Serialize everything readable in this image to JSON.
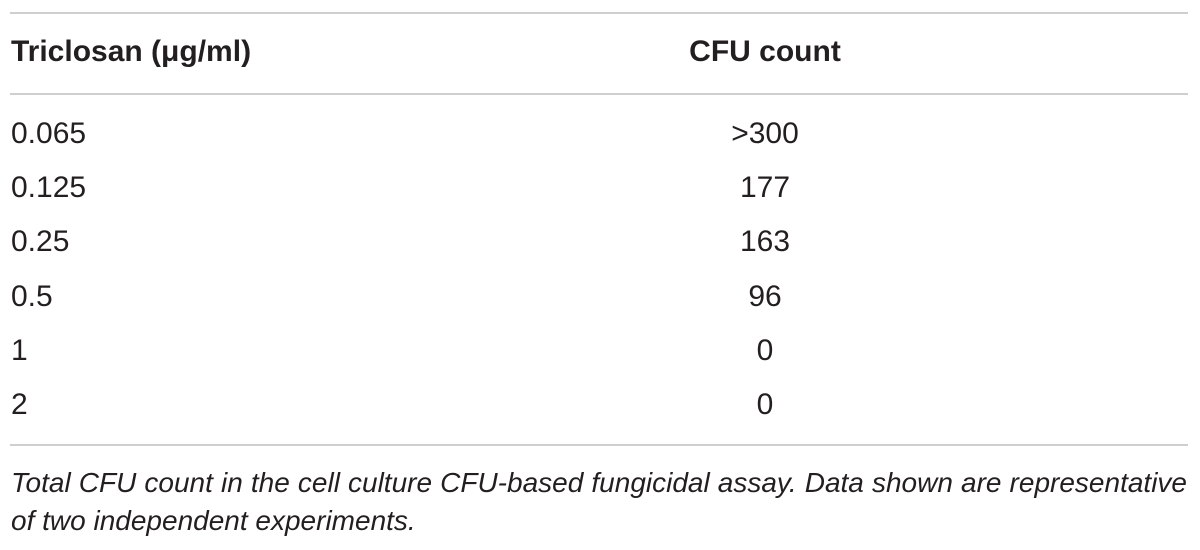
{
  "table": {
    "header": [
      "Triclosan (μg/ml)",
      "CFU count"
    ],
    "rows": [
      [
        "0.065",
        ">300"
      ],
      [
        "0.125",
        "177"
      ],
      [
        "0.25",
        "163"
      ],
      [
        "0.5",
        "96"
      ],
      [
        "1",
        "0"
      ],
      [
        "2",
        "0"
      ]
    ],
    "caption": "Total CFU count in the cell culture CFU-based fungicidal assay. Data shown are representative of two independent experiments."
  }
}
